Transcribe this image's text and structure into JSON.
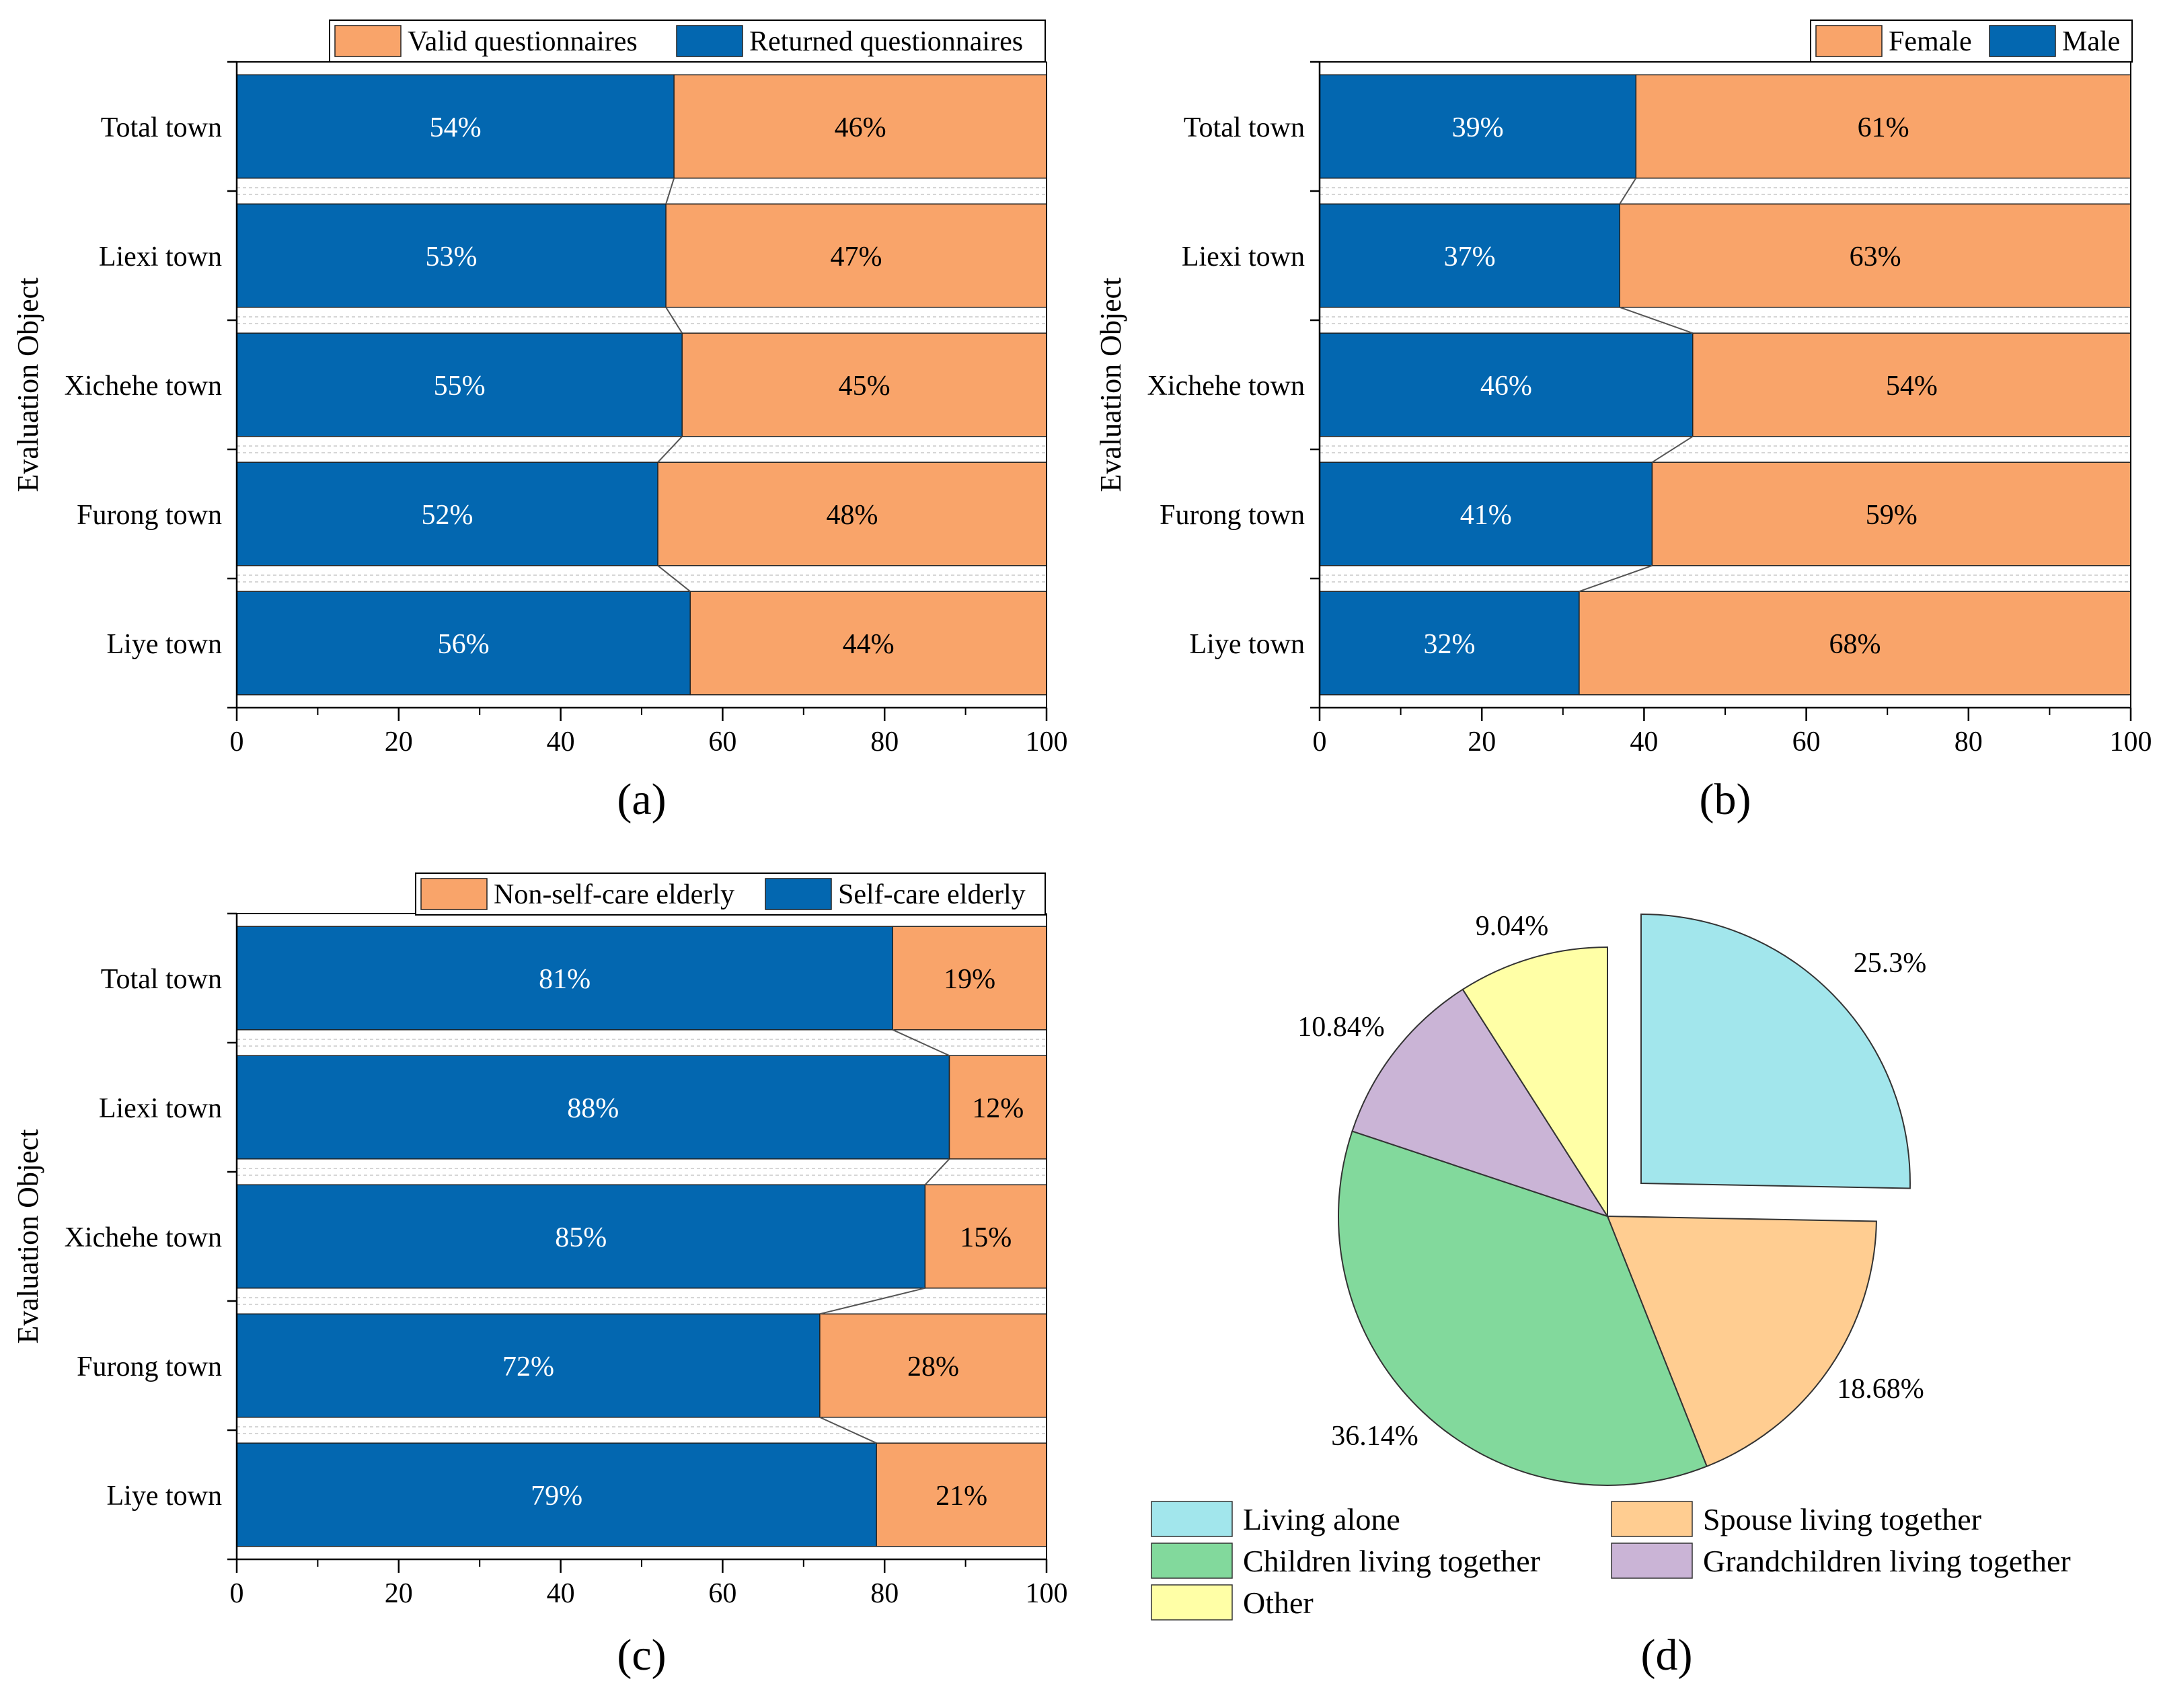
{
  "colors": {
    "blue": "#0367B0",
    "orange": "#F9A46A",
    "living_alone": "#A2E6EC",
    "spouse": "#FFCD91",
    "children": "#82D99C",
    "grandchildren": "#CAB4D6",
    "other": "#FFFFA6",
    "axis": "#000000",
    "connector": "#555555"
  },
  "chart_data": [
    {
      "type": "bar",
      "stacked": true,
      "orientation": "horizontal",
      "panel_label": "(a)",
      "ylabel": "Evaluation Object",
      "xlim": [
        0,
        100
      ],
      "xticks": [
        "0",
        "20",
        "40",
        "60",
        "80",
        "100"
      ],
      "categories": [
        "Total town",
        "Liexi town",
        "Xichehe town",
        "Furong town",
        "Liye town"
      ],
      "series": [
        {
          "name": "Returned questionnaires",
          "color": "blue",
          "values": [
            54,
            53,
            55,
            52,
            56
          ],
          "labels": [
            "54%",
            "53%",
            "55%",
            "52%",
            "56%"
          ]
        },
        {
          "name": "Valid questionnaires",
          "color": "orange",
          "values": [
            46,
            47,
            45,
            48,
            44
          ],
          "labels": [
            "46%",
            "47%",
            "45%",
            "48%",
            "44%"
          ]
        }
      ],
      "legend": [
        "Valid questionnaires",
        "Returned questionnaires"
      ],
      "legend_placement": "top-right"
    },
    {
      "type": "bar",
      "stacked": true,
      "orientation": "horizontal",
      "panel_label": "(b)",
      "ylabel": "Evaluation Object",
      "xlim": [
        0,
        100
      ],
      "xticks": [
        "0",
        "20",
        "40",
        "60",
        "80",
        "100"
      ],
      "categories": [
        "Total town",
        "Liexi town",
        "Xichehe town",
        "Furong town",
        "Liye town"
      ],
      "series": [
        {
          "name": "Male",
          "color": "blue",
          "values": [
            39,
            37,
            46,
            41,
            32
          ],
          "labels": [
            "39%",
            "37%",
            "46%",
            "41%",
            "32%"
          ]
        },
        {
          "name": "Female",
          "color": "orange",
          "values": [
            61,
            63,
            54,
            59,
            68
          ],
          "labels": [
            "61%",
            "63%",
            "54%",
            "59%",
            "68%"
          ]
        }
      ],
      "legend": [
        "Female",
        "Male"
      ],
      "legend_placement": "top-right"
    },
    {
      "type": "bar",
      "stacked": true,
      "orientation": "horizontal",
      "panel_label": "(c)",
      "ylabel": "Evaluation Object",
      "xlim": [
        0,
        100
      ],
      "xticks": [
        "0",
        "20",
        "40",
        "60",
        "80",
        "100"
      ],
      "categories": [
        "Total town",
        "Liexi town",
        "Xichehe town",
        "Furong town",
        "Liye town"
      ],
      "series": [
        {
          "name": "Self-care elderly",
          "color": "blue",
          "values": [
            81,
            88,
            85,
            72,
            79
          ],
          "labels": [
            "81%",
            "88%",
            "85%",
            "72%",
            "79%"
          ]
        },
        {
          "name": "Non-self-care elderly",
          "color": "orange",
          "values": [
            19,
            12,
            15,
            28,
            21
          ],
          "labels": [
            "19%",
            "12%",
            "15%",
            "28%",
            "21%"
          ]
        }
      ],
      "legend": [
        "Non-self-care elderly",
        "Self-care elderly"
      ],
      "legend_placement": "top-right"
    },
    {
      "type": "pie",
      "panel_label": "(d)",
      "slices": [
        {
          "name": "Living alone",
          "value": 25.3,
          "label": "25.3%",
          "color": "living_alone",
          "exploded": true
        },
        {
          "name": "Spouse living together",
          "value": 18.68,
          "label": "18.68%",
          "color": "spouse",
          "exploded": false
        },
        {
          "name": "Children living together",
          "value": 36.14,
          "label": "36.14%",
          "color": "children",
          "exploded": false
        },
        {
          "name": "Grandchildren living together",
          "value": 10.84,
          "label": "10.84%",
          "color": "grandchildren",
          "exploded": false
        },
        {
          "name": "Other",
          "value": 9.04,
          "label": "9.04%",
          "color": "other",
          "exploded": false
        }
      ],
      "legend": [
        "Living alone",
        "Spouse living together",
        "Children living together",
        "Grandchildren living together",
        "Other"
      ],
      "legend_placement": "bottom"
    }
  ]
}
